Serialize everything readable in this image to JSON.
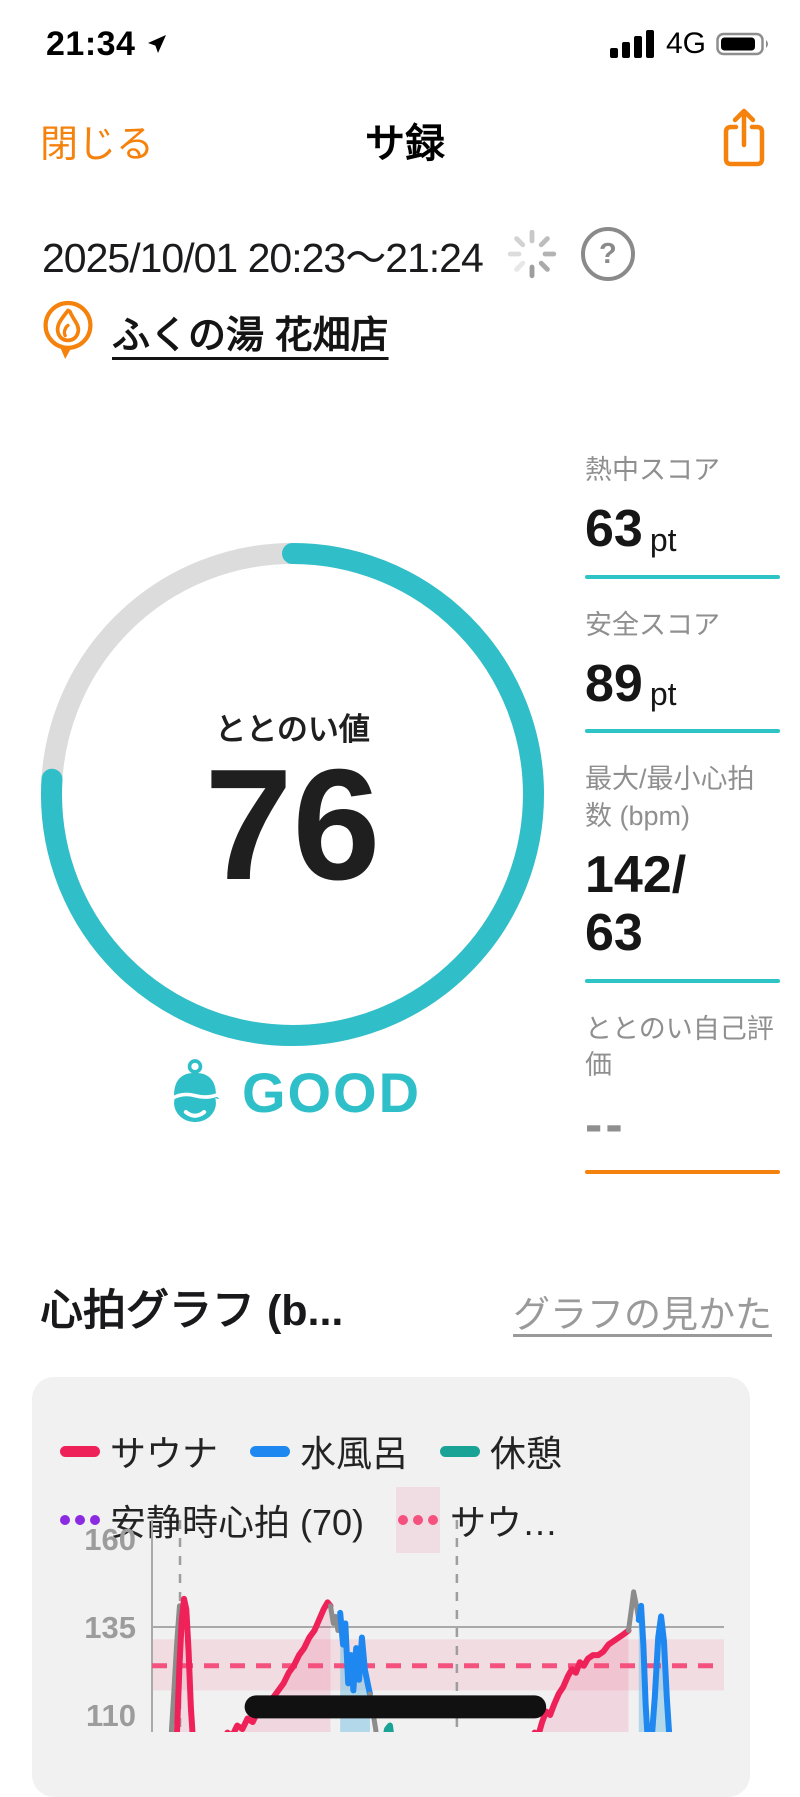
{
  "status_bar": {
    "time": "21:34",
    "network": "4G",
    "battery_pct": 78
  },
  "nav": {
    "close_label": "閉じる",
    "title": "サ録"
  },
  "session": {
    "datetime": "2025/10/01 20:23〜21:24",
    "venue_name": "ふくの湯 花畑店"
  },
  "gauge": {
    "label": "ととのい値",
    "value": "76",
    "progress_pct": 76,
    "rating": "GOOD",
    "arc_color": "#30BEC8",
    "track_color": "#DCDCDC"
  },
  "stats": {
    "items": [
      {
        "label": "熱中スコア",
        "value": "63",
        "unit": "pt",
        "underline_color": "#2EC4C6"
      },
      {
        "label": "安全スコア",
        "value": "89",
        "unit": "pt",
        "underline_color": "#2EC4C6"
      },
      {
        "label": "最大/最小心拍数 (bpm)",
        "value": "142/63",
        "unit": "",
        "underline_color": "#2EC4C6"
      },
      {
        "label": "ととのい自己評価",
        "value": "--",
        "unit": "",
        "underline_color": "#F5820D"
      }
    ]
  },
  "section": {
    "title": "心拍グラフ (b...",
    "link": "グラフの見かた"
  },
  "icons": {
    "question_glyph": "?",
    "share": "share-up-arrow",
    "flame": "flame-map-pin",
    "spinner": "loading-spinner",
    "location": "location-arrow",
    "good_face": "sauna-hat-face"
  },
  "chart_data": {
    "type": "line",
    "x_axis": {
      "labels_visible": false,
      "note": "x = percent of visible plot width, session 20:23-21:24"
    },
    "yticks": [
      160,
      135,
      110
    ],
    "ylim_visible": [
      105,
      162
    ],
    "legend": [
      {
        "label": "サウナ",
        "color": "#EE2158",
        "swatch": "line"
      },
      {
        "label": "水風呂",
        "color": "#1F87F0",
        "swatch": "line"
      },
      {
        "label": "休憩",
        "color": "#19A396",
        "swatch": "line"
      },
      {
        "label": "安静時心拍 (70)",
        "color": "#8A2BE2",
        "swatch": "dotted-line",
        "value_bpm": 70
      },
      {
        "label": "サウ…",
        "color": "#F4517E",
        "swatch": "dotted-line-on-band"
      }
    ],
    "grid": {
      "solid_hline_bpm": 135,
      "dashed_vlines_pct": [
        4.9,
        53.3
      ],
      "axis_color": "#A9A9A9"
    },
    "target_band": {
      "from_bpm": 117,
      "to_bpm": 131.5,
      "fill": "rgba(242,90,137,0.14)",
      "center_dash_bpm": 124,
      "dash_color": "#F4517E"
    },
    "privacy_bar": {
      "from_pct": 18.2,
      "to_pct": 66.9,
      "bpm": 112.3,
      "color": "#111111"
    },
    "segments": [
      {
        "name": "heatup-gray-1",
        "color": "#8C8C8C",
        "width": 5,
        "points": [
          [
            3.3,
            103
          ],
          [
            3.8,
            116
          ],
          [
            4.3,
            130
          ],
          [
            4.8,
            141
          ]
        ]
      },
      {
        "name": "sauna-spike-1",
        "color": "#EE2158",
        "width": 6,
        "fill": "rgba(240,26,88,0.10)",
        "points": [
          [
            4.3,
            102
          ],
          [
            4.8,
            124
          ],
          [
            5.2,
            137
          ],
          [
            5.6,
            143
          ],
          [
            6.0,
            140
          ],
          [
            6.4,
            128
          ],
          [
            6.8,
            112
          ],
          [
            7.2,
            102
          ]
        ]
      },
      {
        "name": "sauna-2",
        "color": "#EE2158",
        "width": 6,
        "fill": "rgba(240,26,88,0.12)",
        "points": [
          [
            12.4,
            103
          ],
          [
            13.2,
            105
          ],
          [
            14.0,
            104
          ],
          [
            14.9,
            107
          ],
          [
            15.8,
            106
          ],
          [
            16.7,
            109
          ],
          [
            17.6,
            108
          ],
          [
            18.5,
            111
          ],
          [
            19.4,
            113
          ],
          [
            20.3,
            112
          ],
          [
            21.2,
            115
          ],
          [
            22.1,
            117
          ],
          [
            23.0,
            119
          ],
          [
            23.9,
            122
          ],
          [
            24.8,
            124
          ],
          [
            25.7,
            127
          ],
          [
            26.6,
            129
          ],
          [
            27.5,
            132
          ],
          [
            28.4,
            134
          ],
          [
            29.2,
            137
          ],
          [
            30.0,
            140
          ],
          [
            30.7,
            142
          ],
          [
            31.2,
            141
          ]
        ]
      },
      {
        "name": "cooldown-gray-2",
        "color": "#8C8C8C",
        "width": 5,
        "points": [
          [
            31.2,
            141
          ],
          [
            31.7,
            136
          ],
          [
            32.1,
            138
          ],
          [
            32.5,
            134
          ],
          [
            32.9,
            138
          ]
        ]
      },
      {
        "name": "mizuburo-1",
        "color": "#1F87F0",
        "width": 6,
        "fill": "rgba(125,195,225,0.55)",
        "points": [
          [
            32.9,
            139
          ],
          [
            33.4,
            130
          ],
          [
            33.8,
            136
          ],
          [
            34.3,
            119
          ],
          [
            34.8,
            127
          ],
          [
            35.2,
            117
          ],
          [
            35.7,
            129
          ],
          [
            36.2,
            120
          ],
          [
            36.7,
            132
          ],
          [
            37.2,
            123
          ],
          [
            37.7,
            119
          ],
          [
            38.1,
            116
          ]
        ]
      },
      {
        "name": "cooldown-gray-3",
        "color": "#8C8C8C",
        "width": 5,
        "points": [
          [
            38.1,
            116
          ],
          [
            38.6,
            111
          ],
          [
            39.1,
            106
          ],
          [
            39.4,
            102
          ]
        ]
      },
      {
        "name": "rest-1",
        "color": "#19A396",
        "width": 6,
        "fill": "rgba(25,163,150,0.35)",
        "points": [
          [
            40.6,
            102
          ],
          [
            41.1,
            106
          ],
          [
            41.6,
            107
          ],
          [
            42.0,
            102
          ]
        ]
      },
      {
        "name": "sauna-3",
        "color": "#EE2158",
        "width": 6,
        "fill": "rgba(240,26,88,0.12)",
        "points": [
          [
            66.3,
            102
          ],
          [
            66.9,
            105
          ],
          [
            67.5,
            104
          ],
          [
            68.2,
            108
          ],
          [
            68.9,
            111
          ],
          [
            69.6,
            110
          ],
          [
            70.3,
            113
          ],
          [
            71.1,
            116
          ],
          [
            71.9,
            118
          ],
          [
            72.7,
            121
          ],
          [
            73.4,
            123
          ],
          [
            74.1,
            122
          ],
          [
            74.8,
            125
          ],
          [
            75.5,
            124
          ],
          [
            76.2,
            126
          ],
          [
            77.1,
            127
          ],
          [
            78.0,
            127
          ],
          [
            78.9,
            128
          ],
          [
            79.8,
            130
          ],
          [
            80.7,
            131
          ],
          [
            81.6,
            132
          ],
          [
            82.5,
            133
          ],
          [
            83.3,
            134
          ]
        ]
      },
      {
        "name": "heatup-gray-4",
        "color": "#8C8C8C",
        "width": 5,
        "points": [
          [
            83.3,
            134
          ],
          [
            83.8,
            140
          ],
          [
            84.2,
            145
          ],
          [
            84.7,
            141
          ],
          [
            85.1,
            137
          ]
        ]
      },
      {
        "name": "mizuburo-2",
        "color": "#1F87F0",
        "width": 6,
        "fill": "rgba(125,195,225,0.55)",
        "points": [
          [
            85.1,
            137
          ],
          [
            85.5,
            141
          ],
          [
            85.9,
            130
          ],
          [
            86.3,
            113
          ],
          [
            86.7,
            102
          ],
          [
            87.3,
            102
          ],
          [
            87.9,
            115
          ],
          [
            88.5,
            132
          ],
          [
            89.0,
            138
          ],
          [
            89.5,
            131
          ],
          [
            90.0,
            115
          ],
          [
            90.4,
            105
          ],
          [
            90.8,
            102
          ]
        ]
      }
    ]
  }
}
